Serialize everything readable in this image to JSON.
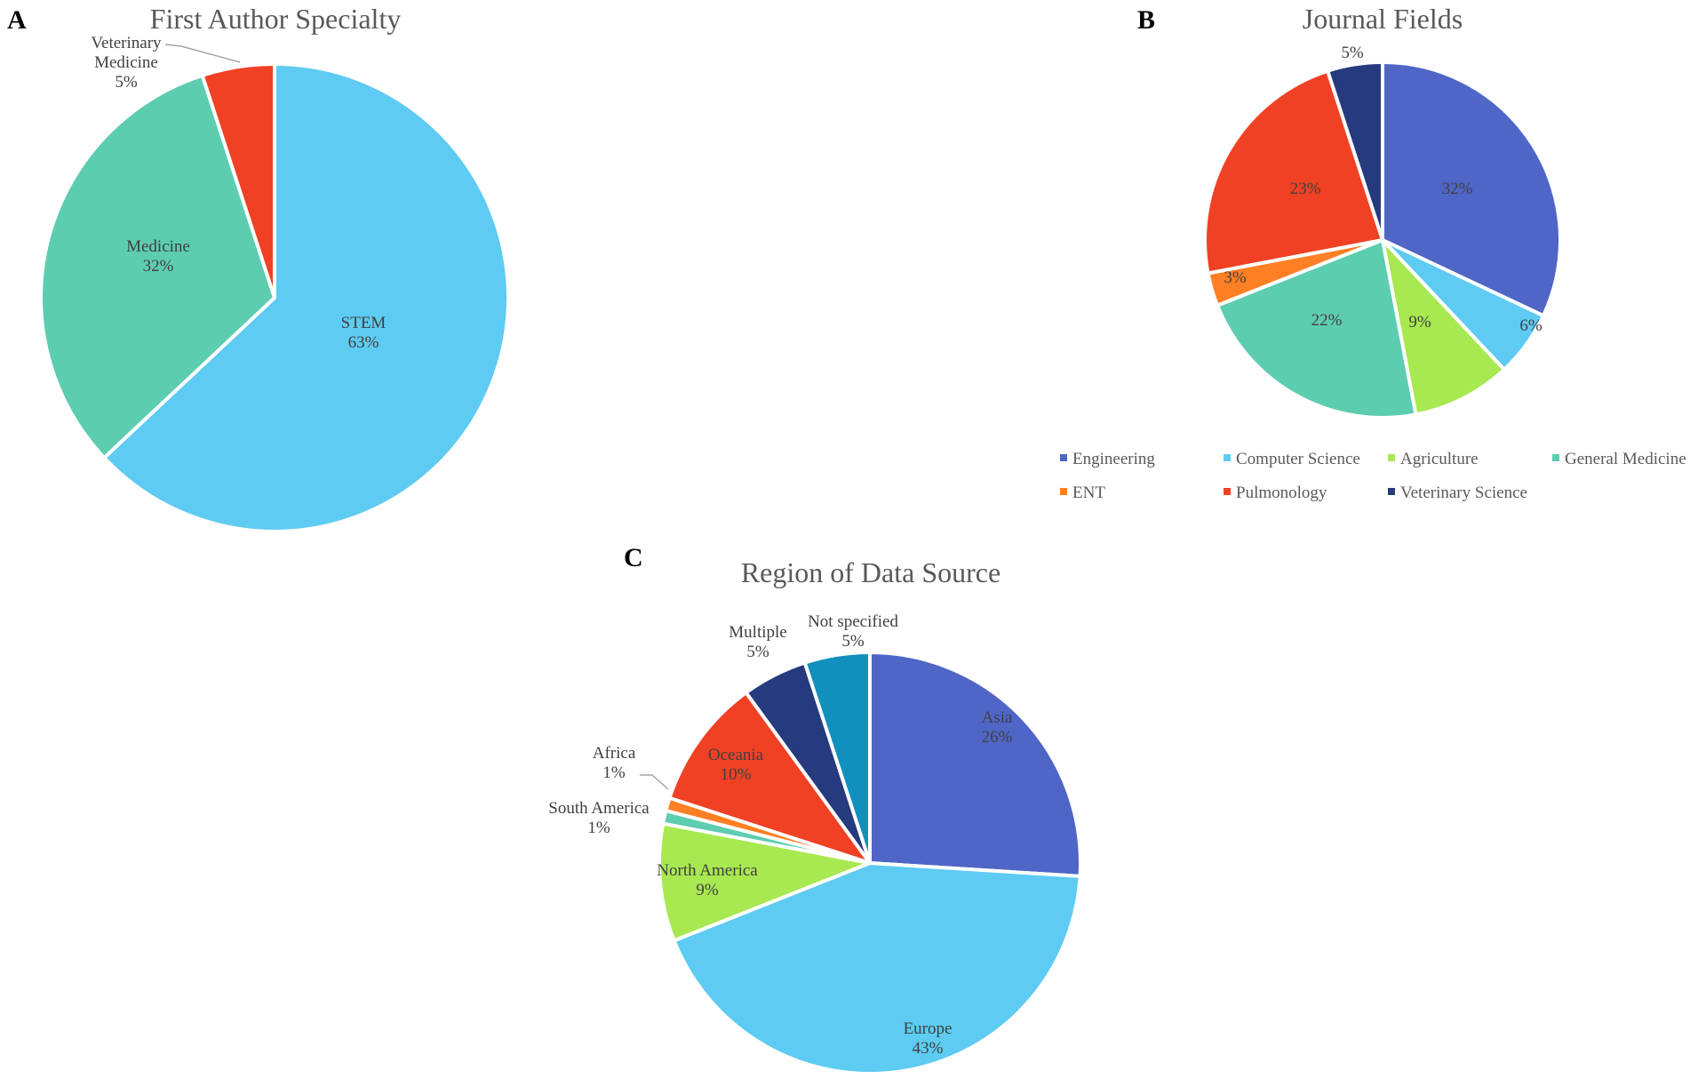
{
  "chart_data": [
    {
      "panel": "A",
      "type": "pie",
      "title": "First Author Specialty",
      "start": "top",
      "direction": "clockwise",
      "slices": [
        {
          "label": "STEM",
          "value": 63,
          "display": "63%",
          "color": "#5ECBF2"
        },
        {
          "label": "Medicine",
          "value": 32,
          "display": "32%",
          "color": "#5DCDB0"
        },
        {
          "label": "Veterinary Medicine",
          "value": 5,
          "display": "5%",
          "color": "#F04125",
          "label_lines": [
            "Veterinary",
            "Medicine"
          ]
        }
      ],
      "legend": "none"
    },
    {
      "panel": "B",
      "type": "pie",
      "title": "Journal Fields",
      "start": "top",
      "direction": "clockwise",
      "slices": [
        {
          "label": "Engineering",
          "value": 32,
          "display": "32%",
          "color": "#4F66C7"
        },
        {
          "label": "Computer Science",
          "value": 6,
          "display": "6%",
          "color": "#5ECBF2"
        },
        {
          "label": "Agriculture",
          "value": 9,
          "display": "9%",
          "color": "#A8E850"
        },
        {
          "label": "General Medicine",
          "value": 22,
          "display": "22%",
          "color": "#5DCDB0"
        },
        {
          "label": "ENT",
          "value": 3,
          "display": "3%",
          "color": "#FF7F24"
        },
        {
          "label": "Pulmonology",
          "value": 23,
          "display": "23%",
          "color": "#F04125"
        },
        {
          "label": "Veterinary Science",
          "value": 5,
          "display": "5%",
          "color": "#263A7E"
        }
      ],
      "legend": "bottom",
      "legend_order": [
        "Engineering",
        "Computer Science",
        "Agriculture",
        "General Medicine",
        "ENT",
        "Pulmonology",
        "Veterinary Science"
      ]
    },
    {
      "panel": "C",
      "type": "pie",
      "title": "Region of Data Source",
      "start": "top",
      "direction": "clockwise",
      "slices": [
        {
          "label": "Asia",
          "value": 26,
          "display": "26%",
          "color": "#4F66C7"
        },
        {
          "label": "Europe",
          "value": 43,
          "display": "43%",
          "color": "#5ECBF2"
        },
        {
          "label": "North America",
          "value": 9,
          "display": "9%",
          "color": "#A8E850"
        },
        {
          "label": "South America",
          "value": 1,
          "display": "1%",
          "color": "#5DCDB0"
        },
        {
          "label": "Africa",
          "value": 1,
          "display": "1%",
          "color": "#FF7F24"
        },
        {
          "label": "Oceania",
          "value": 10,
          "display": "10%",
          "color": "#F04125"
        },
        {
          "label": "Multiple",
          "value": 5,
          "display": "5%",
          "color": "#263A7E"
        },
        {
          "label": "Not specified",
          "value": 5,
          "display": "5%",
          "color": "#1190BE"
        }
      ],
      "legend": "none"
    }
  ]
}
